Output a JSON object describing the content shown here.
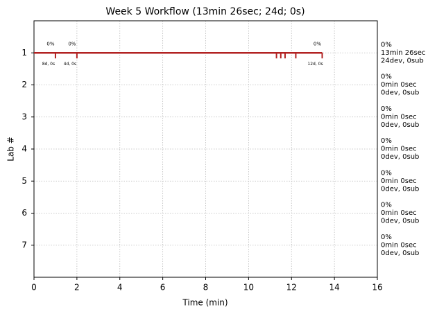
{
  "chart_data": {
    "type": "timeline",
    "title": "Week 5 Workflow (13min 26sec; 24d; 0s)",
    "xlabel": "Time (min)",
    "ylabel": "Lab #",
    "xlim": [
      0,
      16
    ],
    "xticks": [
      0,
      2,
      4,
      6,
      8,
      10,
      12,
      14,
      16
    ],
    "ylim": [
      8,
      0
    ],
    "yticks": [
      1,
      2,
      3,
      4,
      5,
      6,
      7
    ],
    "grid": true,
    "bars": [
      {
        "lab": 1,
        "start": 0,
        "end": 13.43,
        "color": "#b22222"
      }
    ],
    "markers": [
      {
        "lab": 1,
        "x": 1,
        "top": "0%",
        "bottom": "8d, 0s"
      },
      {
        "lab": 1,
        "x": 2,
        "top": "0%",
        "bottom": "4d, 0s"
      },
      {
        "lab": 1,
        "x": 11.3
      },
      {
        "lab": 1,
        "x": 11.5
      },
      {
        "lab": 1,
        "x": 11.7
      },
      {
        "lab": 1,
        "x": 12.2
      },
      {
        "lab": 1,
        "x": 13.43,
        "top": "0%",
        "bottom": "12d, 0s"
      }
    ],
    "summaries": [
      {
        "lab": 1,
        "color": "#b22222",
        "lines": [
          "0%",
          "13min 26sec",
          "24dev, 0sub"
        ]
      },
      {
        "lab": 2,
        "color": "#4b0082",
        "lines": [
          "0%",
          "0min 0sec",
          "0dev, 0sub"
        ]
      },
      {
        "lab": 3,
        "color": "#191970",
        "lines": [
          "0%",
          "0min 0sec",
          "0dev, 0sub"
        ]
      },
      {
        "lab": 4,
        "color": "#1e9ad6",
        "lines": [
          "0%",
          "0min 0sec",
          "0dev, 0sub"
        ]
      },
      {
        "lab": 5,
        "color": "#228b22",
        "lines": [
          "0%",
          "0min 0sec",
          "0dev, 0sub"
        ]
      },
      {
        "lab": 6,
        "color": "#e05a00",
        "lines": [
          "0%",
          "0min 0sec",
          "0dev, 0sub"
        ]
      },
      {
        "lab": 7,
        "color": "#000000",
        "lines": [
          "0%",
          "0min 0sec",
          "0dev, 0sub"
        ]
      }
    ]
  }
}
